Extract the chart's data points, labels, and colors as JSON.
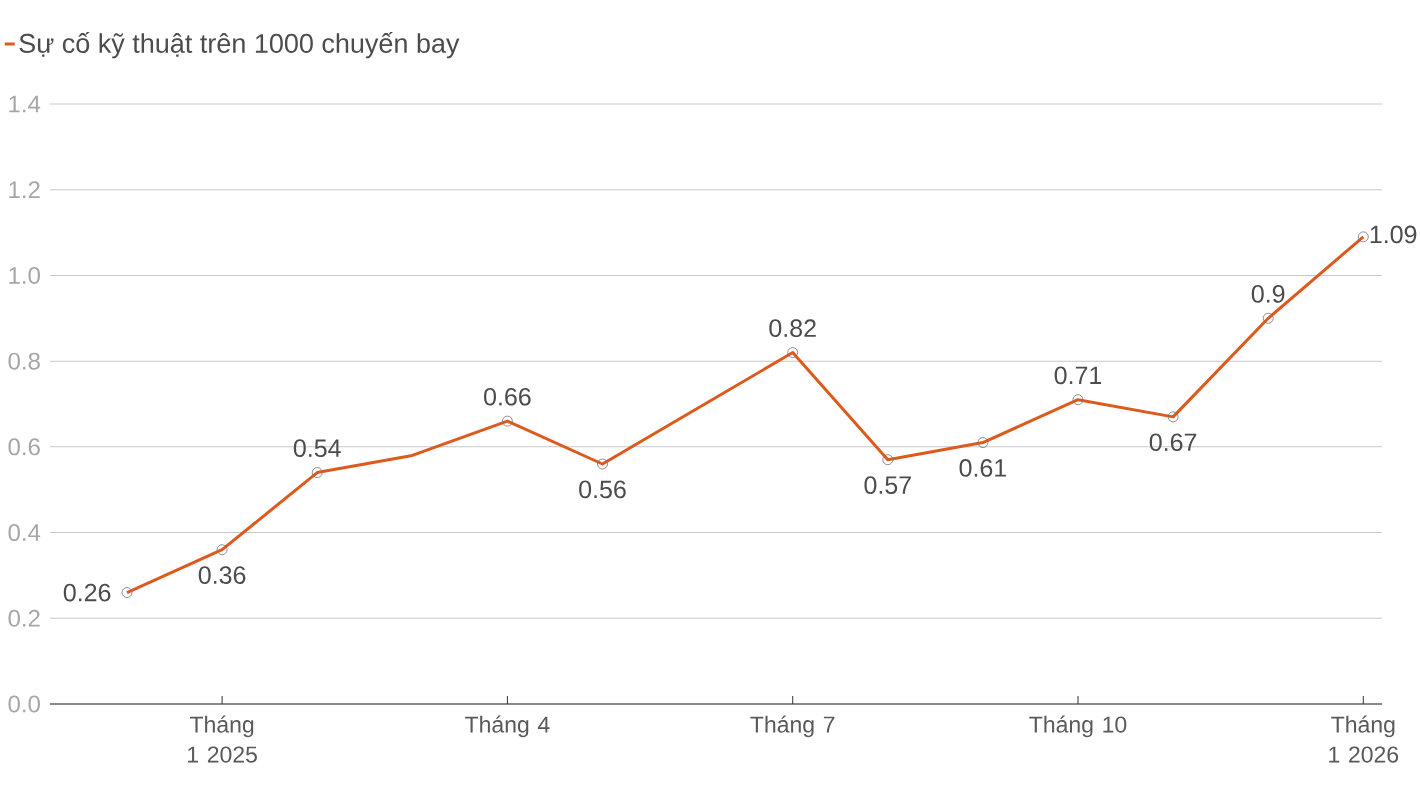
{
  "chart_data": {
    "type": "line",
    "categories": [
      null,
      "Tháng 1 2025",
      null,
      null,
      "Tháng 4",
      null,
      null,
      "Tháng 7",
      null,
      null,
      "Tháng 10",
      null,
      null,
      "Tháng 1 2026"
    ],
    "series": [
      {
        "name": "Sự cố kỹ thuật trên 1000 chuyến bay",
        "color": "#dd5a1c",
        "values": [
          0.26,
          0.36,
          0.54,
          0.58,
          0.66,
          0.56,
          0.69,
          0.82,
          0.57,
          0.61,
          0.71,
          0.67,
          0.9,
          1.09
        ],
        "value_labels": [
          "0.26",
          "0.36",
          "0.54",
          null,
          "0.66",
          "0.56",
          null,
          "0.82",
          "0.57",
          "0.61",
          "0.71",
          "0.67",
          "0.9",
          "1.09"
        ]
      }
    ],
    "ylim": [
      0,
      1.4
    ],
    "yticks": [
      {
        "value": 0,
        "label": "0.0"
      },
      0.2,
      0.4,
      0.6,
      0.8,
      {
        "value": 1.0,
        "label": "1.0"
      },
      1.2,
      1.4
    ],
    "grid": "y",
    "legend": "top left",
    "marker": "circle",
    "line_style": "solid"
  }
}
